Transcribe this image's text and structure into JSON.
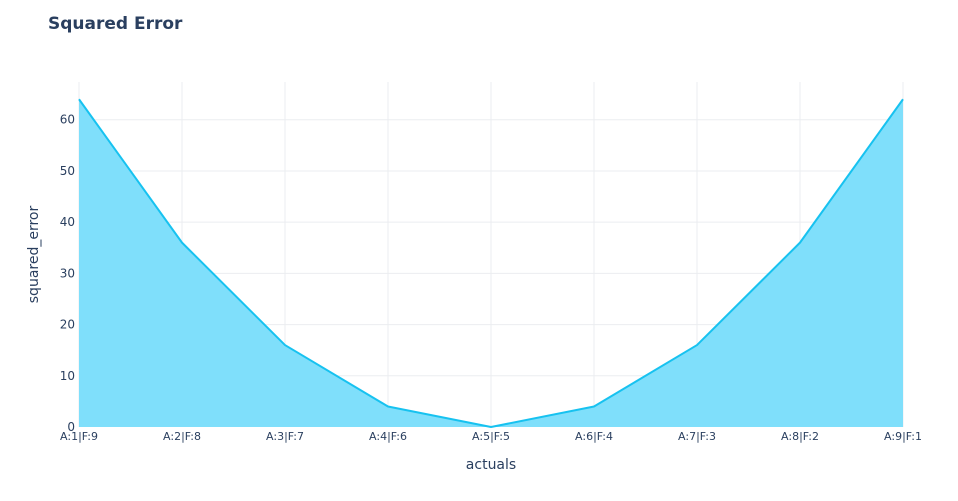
{
  "chart_data": {
    "type": "area",
    "title": "Squared Error",
    "xlabel": "actuals",
    "ylabel": "squared_error",
    "categories": [
      "A:1|F:9",
      "A:2|F:8",
      "A:3|F:7",
      "A:4|F:6",
      "A:5|F:5",
      "A:6|F:4",
      "A:7|F:3",
      "A:8|F:2",
      "A:9|F:1"
    ],
    "series": [
      {
        "values": [
          64,
          36,
          16,
          4,
          0,
          4,
          16,
          36,
          64
        ]
      }
    ],
    "ylim": [
      0,
      67.37
    ],
    "yticks": [
      0,
      10,
      20,
      30,
      40,
      50,
      60
    ],
    "grid": true,
    "legend": "none",
    "colors": {
      "line": "#17c2f0",
      "fill": "#7fdffb",
      "grid": "#ebedf0",
      "axis_text": "#2a3f5f",
      "title": "#2a3f5f"
    }
  }
}
